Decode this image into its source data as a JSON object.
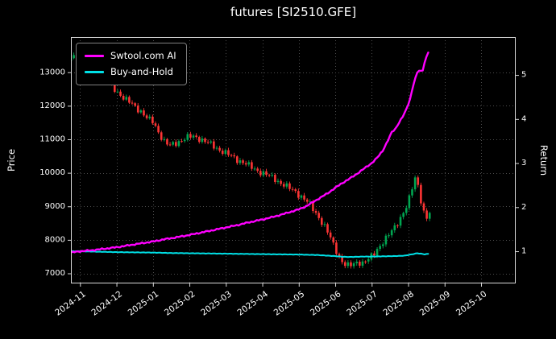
{
  "title": "futures [SI2510.GFE]",
  "axes": {
    "left_label": "Price",
    "right_label": "Return",
    "price_ticks": [
      7000,
      8000,
      9000,
      10000,
      11000,
      12000,
      13000
    ],
    "return_ticks": [
      1,
      2,
      3,
      4,
      5
    ],
    "x_ticks": [
      0,
      1,
      2,
      3,
      4,
      5,
      6,
      7,
      8,
      9,
      10,
      11
    ],
    "x_ticklabels": [
      "2024-11",
      "2024-12",
      "2025-01",
      "2025-02",
      "2025-03",
      "2025-04",
      "2025-05",
      "2025-06",
      "2025-07",
      "2025-08",
      "2025-09",
      "2025-10"
    ]
  },
  "legend": {
    "items": [
      {
        "label": "Swtool.com AI",
        "color": "#ff00ff"
      },
      {
        "label": "Buy-and-Hold",
        "color": "#00e0e6"
      }
    ]
  },
  "colors": {
    "background": "#000000",
    "text": "#ffffff",
    "grid": "#4d4d4d",
    "spine": "#d9d9d9",
    "candle_up": "#00a651",
    "candle_down": "#fb3434"
  },
  "chart_data": {
    "type": [
      "candlestick",
      "line"
    ],
    "title": "futures [SI2510.GFE]",
    "x_unit": "months_since_2024-11-01",
    "xlim": [
      -0.25,
      11.95
    ],
    "grid": true,
    "legend_position": "upper-left",
    "price_axis": {
      "label": "Price",
      "lim": [
        6700,
        14050
      ],
      "ticks": [
        7000,
        8000,
        9000,
        10000,
        11000,
        12000,
        13000
      ]
    },
    "return_axis": {
      "label": "Return",
      "lim": [
        0.27,
        5.86
      ],
      "ticks": [
        1,
        2,
        3,
        4,
        5
      ]
    },
    "price_close_keypoints": [
      [
        -0.25,
        13380
      ],
      [
        -0.1,
        13480
      ],
      [
        0,
        13300
      ],
      [
        0.15,
        13400
      ],
      [
        0.3,
        13150
      ],
      [
        0.45,
        12950
      ],
      [
        0.55,
        13060
      ],
      [
        0.7,
        12760
      ],
      [
        0.85,
        12560
      ],
      [
        1,
        12420
      ],
      [
        1.15,
        12300
      ],
      [
        1.3,
        12160
      ],
      [
        1.5,
        11960
      ],
      [
        1.7,
        11820
      ],
      [
        1.85,
        11620
      ],
      [
        2,
        11500
      ],
      [
        2.15,
        11220
      ],
      [
        2.3,
        10960
      ],
      [
        2.45,
        10800
      ],
      [
        2.6,
        10860
      ],
      [
        2.75,
        10960
      ],
      [
        2.9,
        11050
      ],
      [
        3.1,
        11080
      ],
      [
        3.3,
        11020
      ],
      [
        3.5,
        10900
      ],
      [
        3.7,
        10760
      ],
      [
        3.9,
        10650
      ],
      [
        4.1,
        10520
      ],
      [
        4.3,
        10400
      ],
      [
        4.5,
        10300
      ],
      [
        4.7,
        10160
      ],
      [
        4.9,
        10050
      ],
      [
        5.1,
        9950
      ],
      [
        5.3,
        9850
      ],
      [
        5.5,
        9700
      ],
      [
        5.7,
        9560
      ],
      [
        5.9,
        9450
      ],
      [
        6.1,
        9260
      ],
      [
        6.3,
        9060
      ],
      [
        6.5,
        8760
      ],
      [
        6.7,
        8400
      ],
      [
        6.85,
        8100
      ],
      [
        7,
        7760
      ],
      [
        7.15,
        7400
      ],
      [
        7.3,
        7200
      ],
      [
        7.45,
        7260
      ],
      [
        7.6,
        7360
      ],
      [
        7.75,
        7290
      ],
      [
        7.9,
        7400
      ],
      [
        8.05,
        7600
      ],
      [
        8.2,
        7800
      ],
      [
        8.35,
        7950
      ],
      [
        8.5,
        8200
      ],
      [
        8.65,
        8450
      ],
      [
        8.8,
        8660
      ],
      [
        8.95,
        8950
      ],
      [
        9.05,
        9300
      ],
      [
        9.15,
        9760
      ],
      [
        9.22,
        9960
      ],
      [
        9.3,
        9460
      ],
      [
        9.4,
        8860
      ],
      [
        9.5,
        8600
      ],
      [
        9.58,
        8800
      ]
    ],
    "series": [
      {
        "name": "Buy-and-Hold",
        "axis": "return",
        "color": "#00e0e6",
        "points": [
          [
            -0.25,
            1.0
          ],
          [
            0,
            1.0
          ],
          [
            0.5,
            0.99
          ],
          [
            1,
            0.98
          ],
          [
            1.5,
            0.975
          ],
          [
            2,
            0.97
          ],
          [
            2.5,
            0.96
          ],
          [
            3,
            0.955
          ],
          [
            3.5,
            0.95
          ],
          [
            4,
            0.945
          ],
          [
            4.5,
            0.94
          ],
          [
            5,
            0.935
          ],
          [
            5.5,
            0.93
          ],
          [
            6,
            0.925
          ],
          [
            6.5,
            0.915
          ],
          [
            6.8,
            0.9
          ],
          [
            7,
            0.89
          ],
          [
            7.2,
            0.875
          ],
          [
            7.4,
            0.87
          ],
          [
            7.6,
            0.875
          ],
          [
            7.8,
            0.88
          ],
          [
            8,
            0.88
          ],
          [
            8.3,
            0.885
          ],
          [
            8.6,
            0.89
          ],
          [
            8.9,
            0.9
          ],
          [
            9.1,
            0.93
          ],
          [
            9.25,
            0.955
          ],
          [
            9.35,
            0.945
          ],
          [
            9.45,
            0.93
          ],
          [
            9.58,
            0.945
          ]
        ]
      },
      {
        "name": "Swtool.com AI",
        "axis": "return",
        "color": "#ff00ff",
        "points": [
          [
            -0.25,
            0.97
          ],
          [
            0,
            1.0
          ],
          [
            0.3,
            1.02
          ],
          [
            0.6,
            1.05
          ],
          [
            1,
            1.09
          ],
          [
            1.3,
            1.13
          ],
          [
            1.6,
            1.17
          ],
          [
            2,
            1.22
          ],
          [
            2.3,
            1.27
          ],
          [
            2.6,
            1.31
          ],
          [
            3,
            1.37
          ],
          [
            3.3,
            1.42
          ],
          [
            3.6,
            1.47
          ],
          [
            4,
            1.54
          ],
          [
            4.3,
            1.59
          ],
          [
            4.6,
            1.65
          ],
          [
            5,
            1.72
          ],
          [
            5.3,
            1.78
          ],
          [
            5.6,
            1.85
          ],
          [
            6,
            1.95
          ],
          [
            6.2,
            2.02
          ],
          [
            6.4,
            2.12
          ],
          [
            6.6,
            2.22
          ],
          [
            6.8,
            2.32
          ],
          [
            7,
            2.44
          ],
          [
            7.2,
            2.55
          ],
          [
            7.4,
            2.65
          ],
          [
            7.6,
            2.76
          ],
          [
            7.8,
            2.88
          ],
          [
            8,
            3.0
          ],
          [
            8.15,
            3.12
          ],
          [
            8.3,
            3.28
          ],
          [
            8.45,
            3.52
          ],
          [
            8.55,
            3.7
          ],
          [
            8.65,
            3.78
          ],
          [
            8.75,
            3.92
          ],
          [
            8.85,
            4.05
          ],
          [
            8.95,
            4.22
          ],
          [
            9.05,
            4.45
          ],
          [
            9.15,
            4.8
          ],
          [
            9.25,
            5.05
          ],
          [
            9.32,
            5.12
          ],
          [
            9.38,
            5.05
          ],
          [
            9.45,
            5.28
          ],
          [
            9.52,
            5.45
          ],
          [
            9.58,
            5.58
          ]
        ]
      }
    ],
    "candles": {
      "start": -0.25,
      "end": 9.56,
      "step": 0.08
    }
  }
}
